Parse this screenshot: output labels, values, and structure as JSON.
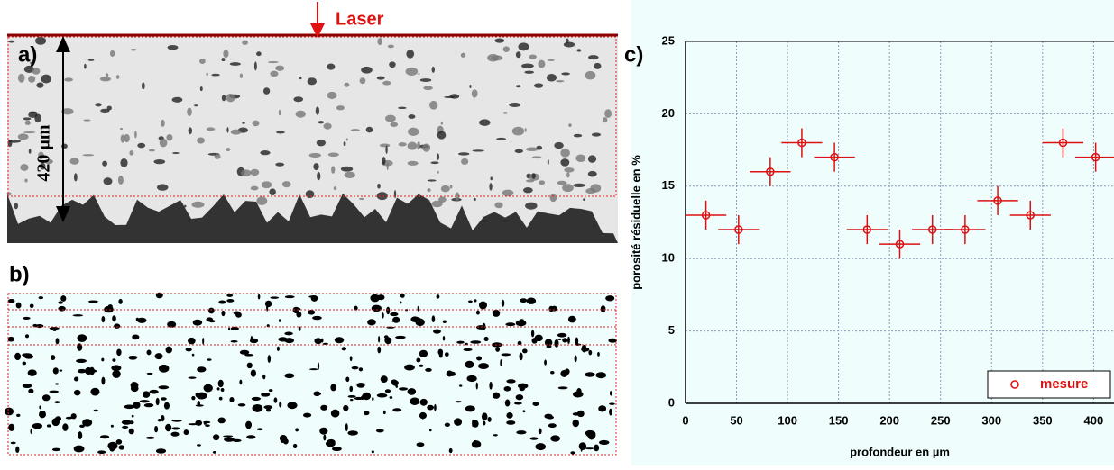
{
  "labels": {
    "a": "a)",
    "b": "b)",
    "laser": "Laser",
    "thickness": "420 µm"
  },
  "chart_data": {
    "type": "errorbar",
    "panel_label": "c)",
    "x_label": "profondeur en µm",
    "y_label": "porosité résiduelle en %",
    "xlim": [
      0,
      420
    ],
    "ylim": [
      0,
      25
    ],
    "xticks": [
      0,
      50,
      100,
      150,
      200,
      250,
      300,
      350,
      400
    ],
    "yticks": [
      0,
      5,
      10,
      15,
      20,
      25
    ],
    "grid": true,
    "legend": "bottom-right",
    "series": [
      {
        "name": "mesure",
        "color": "#dd1111",
        "x": [
          20,
          52,
          83,
          114,
          146,
          178,
          210,
          242,
          274,
          306,
          338,
          370,
          402
        ],
        "values": [
          13,
          12,
          16,
          18,
          17,
          12,
          11,
          12,
          12,
          14,
          13,
          18,
          17
        ],
        "xerr": [
          20,
          20,
          20,
          20,
          20,
          20,
          20,
          20,
          20,
          20,
          20,
          20,
          20
        ],
        "yerr": [
          1,
          1,
          1,
          1,
          1,
          1,
          1,
          1,
          1,
          1,
          1,
          1,
          1
        ]
      }
    ]
  }
}
